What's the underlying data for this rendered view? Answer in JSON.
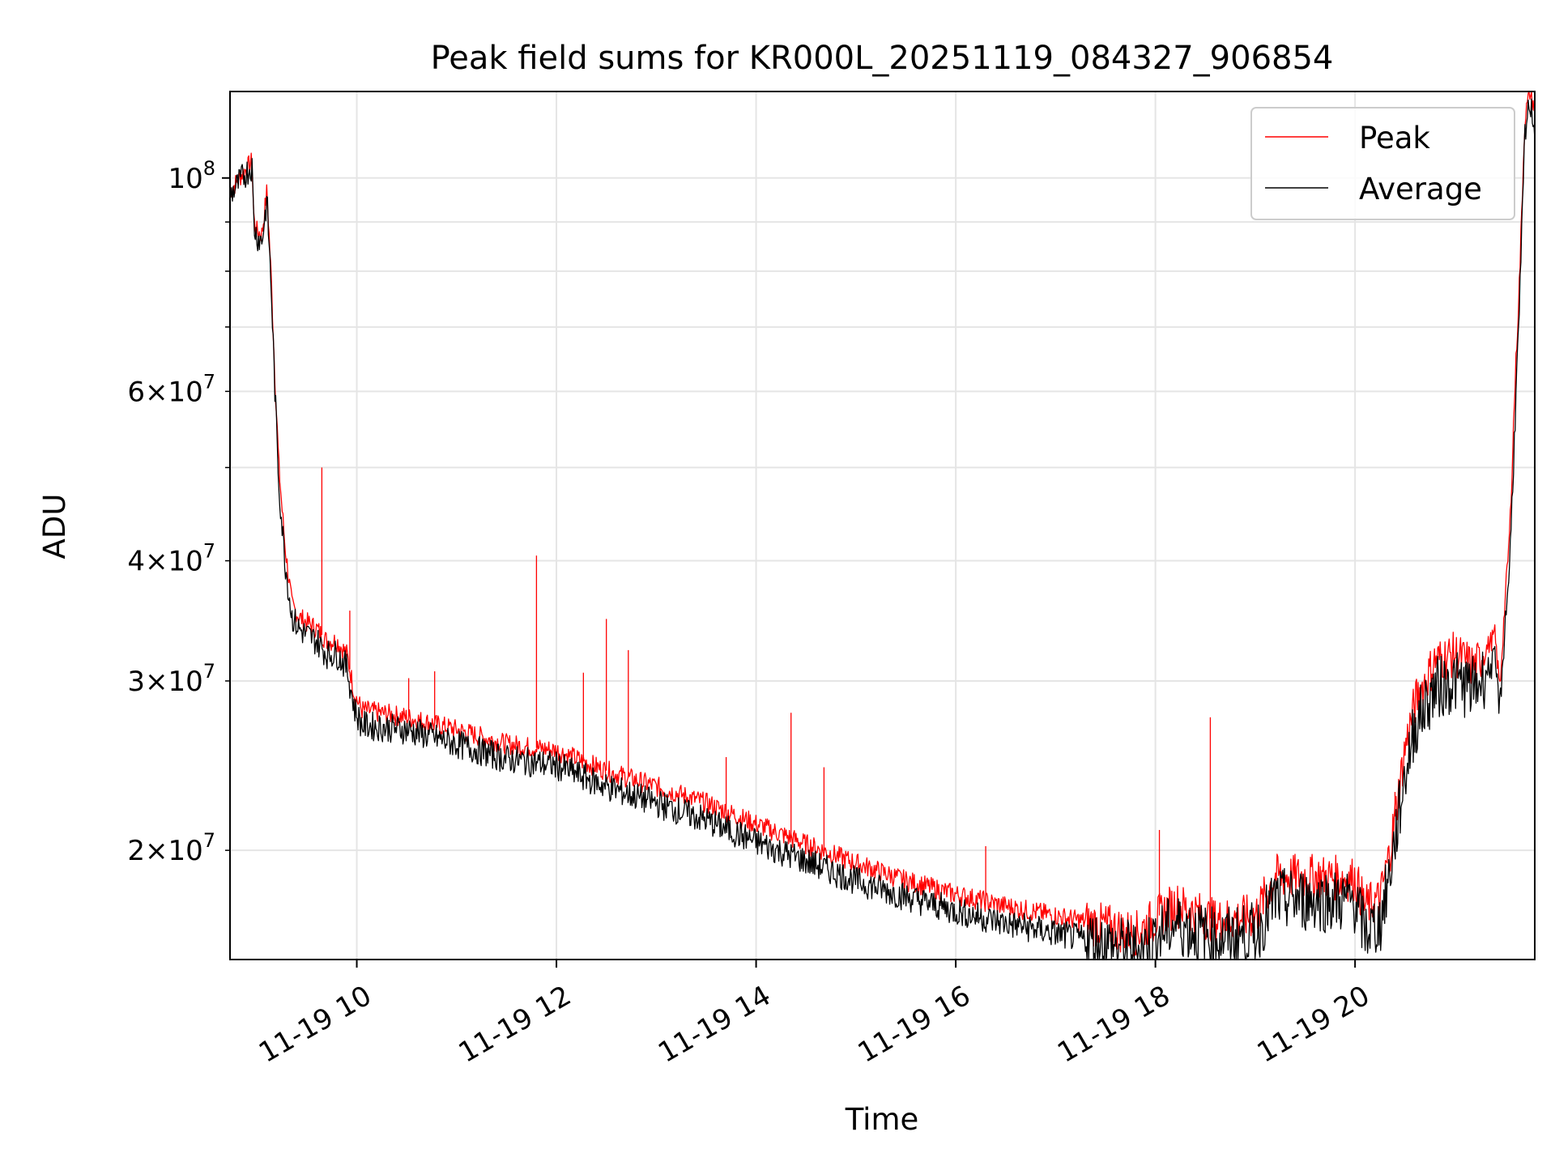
{
  "chart_data": {
    "type": "line",
    "title": "Peak field sums for KR000L_20251119_084327_906854",
    "xlabel": "Time",
    "ylabel": "ADU",
    "yscale": "log",
    "grid": true,
    "legend_position": "top-right",
    "x_unit": "hours (2025-11-19)",
    "xlim": [
      8.73,
      21.8
    ],
    "ylim": [
      15400000,
      123000000
    ],
    "x_ticks": [
      10,
      12,
      14,
      16,
      18,
      20
    ],
    "x_tick_labels": [
      "11-19 10",
      "11-19 12",
      "11-19 14",
      "11-19 16",
      "11-19 18",
      "11-19 20"
    ],
    "y_major_ticks": [
      100000000
    ],
    "y_major_labels": [
      {
        "base": "10",
        "exp": "8"
      }
    ],
    "y_minor_ticks": [
      20000000,
      30000000,
      40000000,
      50000000,
      60000000,
      70000000,
      80000000,
      90000000
    ],
    "y_minor_labels": [
      {
        "value": 20000000,
        "mant": "2",
        "base": "10",
        "exp": "7"
      },
      {
        "value": 30000000,
        "mant": "3",
        "base": "10",
        "exp": "7"
      },
      {
        "value": 40000000,
        "mant": "4",
        "base": "10",
        "exp": "7"
      },
      {
        "value": 60000000,
        "mant": "6",
        "base": "10",
        "exp": "7"
      }
    ],
    "series": [
      {
        "name": "Average",
        "color": "#000000",
        "x": [
          8.73,
          8.78,
          8.85,
          8.95,
          8.97,
          9.0,
          9.05,
          9.1,
          9.12,
          9.14,
          9.18,
          9.22,
          9.28,
          9.35,
          9.42,
          9.5,
          9.6,
          9.7,
          9.8,
          9.9,
          9.98,
          10.05,
          10.5,
          11.0,
          11.5,
          12.0,
          12.5,
          13.0,
          13.5,
          14.0,
          14.5,
          15.0,
          15.5,
          16.0,
          16.5,
          17.0,
          17.5,
          17.8,
          18.2,
          18.6,
          19.0,
          19.2,
          19.6,
          20.0,
          20.1,
          20.25,
          20.35,
          20.5,
          20.6,
          20.8,
          21.0,
          21.2,
          21.4,
          21.45,
          21.5,
          21.55,
          21.6,
          21.65,
          21.7,
          21.75,
          21.8
        ],
        "y": [
          96000000,
          97500000,
          100000000,
          103000000,
          89000000,
          87000000,
          86000000,
          95000000,
          86000000,
          78000000,
          60000000,
          48000000,
          40000000,
          35000000,
          34000000,
          33500000,
          33000000,
          32000000,
          32000000,
          31000000,
          28000000,
          27000000,
          26700000,
          25800000,
          24900000,
          24500000,
          23300000,
          22400000,
          21500000,
          20400000,
          19500000,
          18600000,
          17900000,
          17300000,
          16800000,
          16400000,
          16000000,
          15700000,
          16800000,
          16200000,
          16400000,
          17800000,
          17800000,
          17700000,
          16500000,
          16800000,
          19000000,
          24000000,
          27000000,
          29500000,
          30000000,
          29500000,
          31500000,
          28000000,
          34000000,
          40000000,
          55000000,
          75000000,
          110000000,
          120000000,
          113000000
        ]
      },
      {
        "name": "Peak",
        "color": "#ff0000",
        "x": [
          8.73,
          8.78,
          8.85,
          8.95,
          8.97,
          9.0,
          9.05,
          9.1,
          9.12,
          9.14,
          9.18,
          9.22,
          9.28,
          9.35,
          9.42,
          9.5,
          9.6,
          9.7,
          9.8,
          9.9,
          9.98,
          10.05,
          10.5,
          11.0,
          11.5,
          12.0,
          12.5,
          13.0,
          13.5,
          14.0,
          14.5,
          15.0,
          15.5,
          16.0,
          16.5,
          17.0,
          17.5,
          17.8,
          18.2,
          18.6,
          19.0,
          19.2,
          19.6,
          20.0,
          20.1,
          20.25,
          20.35,
          20.5,
          20.6,
          20.8,
          21.0,
          21.2,
          21.4,
          21.45,
          21.5,
          21.55,
          21.6,
          21.65,
          21.7,
          21.75,
          21.8
        ],
        "y": [
          97000000,
          98500000,
          101000000,
          104000000,
          90000000,
          88000000,
          87500000,
          97000000,
          88000000,
          80000000,
          62000000,
          50000000,
          41500000,
          36000000,
          35000000,
          34500000,
          34000000,
          33000000,
          33000000,
          32000000,
          29000000,
          28000000,
          27500000,
          26700000,
          25800000,
          25400000,
          24200000,
          23300000,
          22400000,
          21300000,
          20300000,
          19400000,
          18600000,
          18000000,
          17500000,
          17100000,
          16700000,
          16400000,
          17600000,
          16900000,
          17100000,
          18800000,
          18800000,
          18700000,
          17500000,
          17800000,
          20000000,
          25500000,
          28500000,
          31500000,
          32000000,
          31000000,
          33500000,
          29500000,
          36000000,
          43000000,
          60000000,
          80000000,
          115000000,
          123000000,
          118000000
        ]
      }
    ],
    "spikes": [
      {
        "series": "Peak",
        "x": 9.65,
        "y": 50000000
      },
      {
        "series": "Peak",
        "x": 9.93,
        "y": 35500000
      },
      {
        "series": "Peak",
        "x": 10.52,
        "y": 30200000
      },
      {
        "series": "Peak",
        "x": 10.78,
        "y": 30700000
      },
      {
        "series": "Peak",
        "x": 11.8,
        "y": 40500000
      },
      {
        "series": "Peak",
        "x": 12.27,
        "y": 30600000
      },
      {
        "series": "Peak",
        "x": 12.5,
        "y": 34800000
      },
      {
        "series": "Peak",
        "x": 12.72,
        "y": 32300000
      },
      {
        "series": "Peak",
        "x": 13.7,
        "y": 25000000
      },
      {
        "series": "Peak",
        "x": 14.35,
        "y": 27800000
      },
      {
        "series": "Peak",
        "x": 14.68,
        "y": 24400000
      },
      {
        "series": "Peak",
        "x": 16.3,
        "y": 20200000
      },
      {
        "series": "Peak",
        "x": 18.04,
        "y": 21000000
      },
      {
        "series": "Peak",
        "x": 18.55,
        "y": 27500000
      },
      {
        "series": "Peak",
        "x": 20.4,
        "y": 23000000
      }
    ]
  }
}
